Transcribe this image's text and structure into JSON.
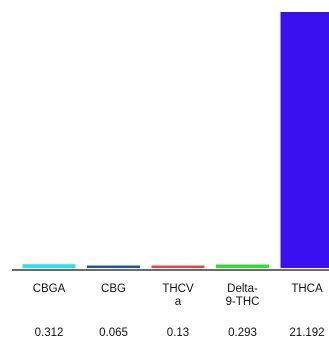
{
  "chart_data": {
    "type": "bar",
    "categories": [
      [
        "CBGA"
      ],
      [
        "CBG"
      ],
      [
        "THCV",
        "a"
      ],
      [
        "Delta-",
        "9-THC"
      ],
      [
        "THCA"
      ]
    ],
    "values": [
      0.312,
      0.065,
      0.13,
      0.293,
      21.192
    ],
    "value_labels": [
      "0.312",
      "0.065",
      "0.13",
      "0.293",
      "21.192"
    ],
    "colors": [
      "#22e4ee",
      "#1d55b0",
      "#f04040",
      "#2ee02e",
      "#3a10f0"
    ],
    "ylim": [
      0,
      21.192
    ],
    "grid": false,
    "legend": "none"
  }
}
